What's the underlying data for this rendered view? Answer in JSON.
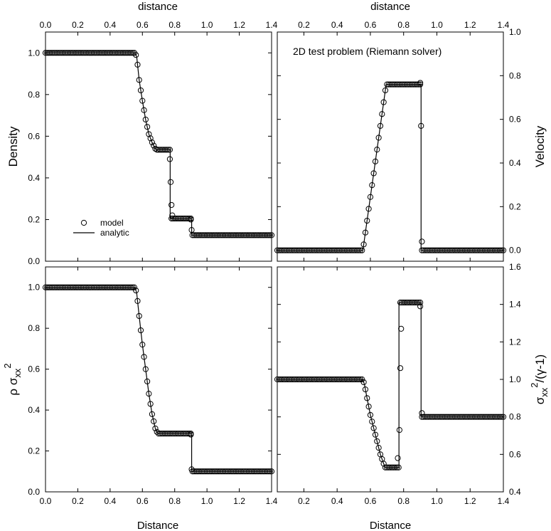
{
  "chart_data": [
    {
      "id": "density",
      "type": "scatter",
      "title": "",
      "xlabel": "",
      "ylabel": "Density",
      "xlim": [
        0,
        1.4
      ],
      "ylim": [
        0,
        1.1
      ],
      "xticks": [
        "0.0",
        "0.2",
        "0.4",
        "0.6",
        "0.8",
        "1.0",
        "1.2",
        "1.4"
      ],
      "yticks": [
        "0.0",
        "0.2",
        "0.4",
        "0.6",
        "0.8",
        "1.0"
      ],
      "ytick_values": [
        0,
        0.2,
        0.4,
        0.6,
        0.8,
        1.0
      ],
      "legend": {
        "placement": "lower-left",
        "entries": [
          "model",
          "analytic"
        ]
      },
      "analytic": {
        "x": [
          0,
          0.555,
          0.565,
          0.58,
          0.6,
          0.62,
          0.64,
          0.66,
          0.68,
          0.69,
          0.772,
          0.772,
          0.905,
          0.905,
          1.4
        ],
        "y": [
          1.0,
          1.0,
          0.98,
          0.87,
          0.77,
          0.68,
          0.61,
          0.57,
          0.54,
          0.535,
          0.535,
          0.205,
          0.205,
          0.125,
          0.125
        ]
      },
      "model": {
        "x_start": 0.0,
        "x_end": 1.4,
        "n": 141,
        "points": [
          [
            0.77,
            0.49
          ],
          [
            0.775,
            0.38
          ],
          [
            0.78,
            0.27
          ],
          [
            0.785,
            0.22
          ],
          [
            0.9,
            0.2
          ],
          [
            0.905,
            0.15
          ]
        ]
      }
    },
    {
      "id": "velocity",
      "type": "scatter",
      "title": "",
      "xlabel": "",
      "ylabel": "Velocity",
      "annotation": "2D test problem (Riemann solver)",
      "xlim": [
        0.04,
        1.4
      ],
      "ylim": [
        -0.05,
        1.0
      ],
      "xticks": [
        "0.2",
        "0.4",
        "0.6",
        "0.8",
        "1.0",
        "1.2",
        "1.4"
      ],
      "yticks": [
        "0.0",
        "0.2",
        "0.4",
        "0.6",
        "0.8",
        "1.0"
      ],
      "ytick_values": [
        0,
        0.2,
        0.4,
        0.6,
        0.8,
        1.0
      ],
      "analytic": {
        "x": [
          0.04,
          0.555,
          0.695,
          0.905,
          0.905,
          1.4
        ],
        "y": [
          0.0,
          0.0,
          0.76,
          0.76,
          0.0,
          0.0
        ]
      },
      "model": {
        "x_start": 0.04,
        "x_end": 1.4,
        "n": 137,
        "points": [
          [
            0.9,
            0.767
          ],
          [
            0.905,
            0.57
          ],
          [
            0.91,
            0.04
          ]
        ]
      }
    },
    {
      "id": "rho_sigma",
      "type": "scatter",
      "title": "",
      "xlabel": "Distance",
      "ylabel": "ρ σ",
      "ylabel_sub": "xx",
      "ylabel_sup": "2",
      "xlim": [
        0,
        1.4
      ],
      "ylim": [
        0,
        1.1
      ],
      "xticks": [
        "0.0",
        "0.2",
        "0.4",
        "0.6",
        "0.8",
        "1.0",
        "1.2",
        "1.4"
      ],
      "yticks": [
        "0.0",
        "0.2",
        "0.4",
        "0.6",
        "0.8",
        "1.0"
      ],
      "ytick_values": [
        0,
        0.2,
        0.4,
        0.6,
        0.8,
        1.0
      ],
      "analytic": {
        "x": [
          0,
          0.555,
          0.565,
          0.58,
          0.6,
          0.62,
          0.64,
          0.66,
          0.68,
          0.695,
          0.905,
          0.905,
          1.4
        ],
        "y": [
          1.0,
          1.0,
          0.97,
          0.86,
          0.72,
          0.6,
          0.48,
          0.38,
          0.31,
          0.285,
          0.285,
          0.1,
          0.1
        ]
      },
      "model": {
        "x_start": 0.0,
        "x_end": 1.4,
        "n": 141,
        "points": [
          [
            0.9,
            0.28
          ],
          [
            0.905,
            0.11
          ]
        ]
      }
    },
    {
      "id": "sigma_gamma",
      "type": "scatter",
      "title": "",
      "xlabel": "Distance",
      "ylabel": "σ",
      "ylabel_sub": "xx",
      "ylabel_sup": "2",
      "ylabel_tail": "/(γ-1)",
      "xlim": [
        0.04,
        1.4
      ],
      "ylim": [
        0.4,
        1.6
      ],
      "xticks": [
        "0.2",
        "0.4",
        "0.6",
        "0.8",
        "1.0",
        "1.2",
        "1.4"
      ],
      "yticks": [
        "0.4",
        "0.6",
        "0.8",
        "1.0",
        "1.2",
        "1.4",
        "1.6"
      ],
      "ytick_values": [
        0.4,
        0.6,
        0.8,
        1.0,
        1.2,
        1.4,
        1.6
      ],
      "analytic": {
        "x": [
          0.04,
          0.555,
          0.565,
          0.58,
          0.6,
          0.62,
          0.64,
          0.66,
          0.68,
          0.69,
          0.772,
          0.772,
          0.905,
          0.905,
          1.4
        ],
        "y": [
          1.0,
          1.0,
          0.97,
          0.9,
          0.81,
          0.74,
          0.67,
          0.6,
          0.55,
          0.53,
          0.53,
          1.41,
          1.41,
          0.8,
          0.8
        ]
      },
      "model": {
        "x_start": 0.04,
        "x_end": 1.4,
        "n": 137,
        "points": [
          [
            0.765,
            0.58
          ],
          [
            0.775,
            0.73
          ],
          [
            0.78,
            1.06
          ],
          [
            0.785,
            1.27
          ],
          [
            0.9,
            1.39
          ],
          [
            0.91,
            0.82
          ]
        ]
      }
    }
  ],
  "top_axis": {
    "left_label": "distance",
    "right_label": "distance"
  }
}
